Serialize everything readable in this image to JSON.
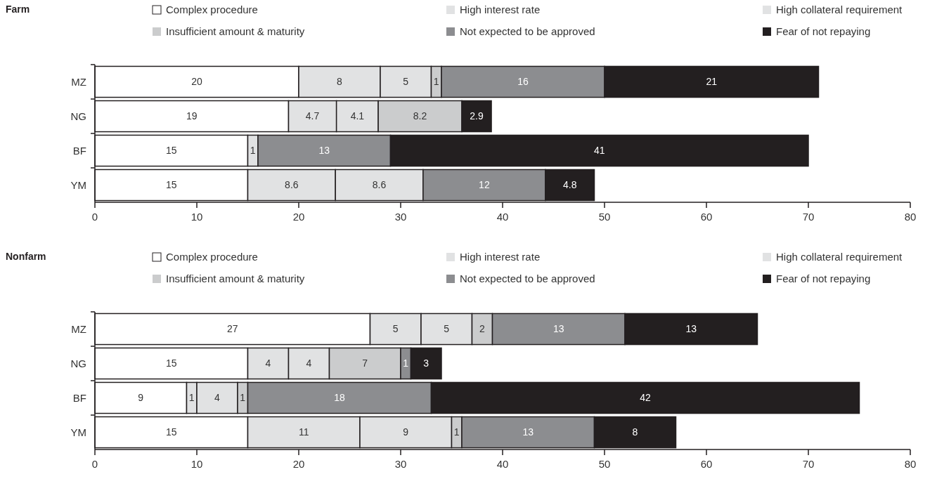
{
  "chart_data": [
    {
      "type": "bar",
      "title": "Farm",
      "orientation": "horizontal",
      "stacked": true,
      "categories": [
        "MZ",
        "NG",
        "BF",
        "YM"
      ],
      "xlim": [
        0,
        80
      ],
      "xticks": [
        0,
        10,
        20,
        30,
        40,
        50,
        60,
        70,
        80
      ],
      "legend": "top",
      "data_labels": true,
      "series": [
        {
          "name": "Complex procedure",
          "color": "#ffffff",
          "values": [
            20,
            19,
            15,
            15
          ]
        },
        {
          "name": "High interest rate",
          "color": "#e1e2e3",
          "values": [
            8,
            4.7,
            1,
            8.6
          ]
        },
        {
          "name": "High collateral requirement",
          "color": "#e1e2e3",
          "values": [
            5,
            4.1,
            null,
            8.6
          ]
        },
        {
          "name": "Insufficient amount & maturity",
          "color": "#cbcccd",
          "values": [
            1,
            8.2,
            null,
            null
          ]
        },
        {
          "name": "Not expected to be approved",
          "color": "#8c8d90",
          "values": [
            16,
            null,
            13,
            12
          ]
        },
        {
          "name": "Fear of not repaying",
          "color": "#231f20",
          "values": [
            21,
            2.9,
            41,
            4.8
          ]
        }
      ]
    },
    {
      "type": "bar",
      "title": "Nonfarm",
      "orientation": "horizontal",
      "stacked": true,
      "categories": [
        "MZ",
        "NG",
        "BF",
        "YM"
      ],
      "xlim": [
        0,
        80
      ],
      "xticks": [
        0,
        10,
        20,
        30,
        40,
        50,
        60,
        70,
        80
      ],
      "legend": "top",
      "data_labels": true,
      "series": [
        {
          "name": "Complex procedure",
          "color": "#ffffff",
          "values": [
            27,
            15,
            9,
            15
          ]
        },
        {
          "name": "High interest rate",
          "color": "#e1e2e3",
          "values": [
            5,
            4,
            1,
            11
          ]
        },
        {
          "name": "High collateral requirement",
          "color": "#e1e2e3",
          "values": [
            5,
            4,
            4,
            9
          ]
        },
        {
          "name": "Insufficient amount & maturity",
          "color": "#cbcccd",
          "values": [
            2,
            7,
            1,
            1
          ]
        },
        {
          "name": "Not expected to be approved",
          "color": "#8c8d90",
          "values": [
            13,
            1,
            18,
            13
          ]
        },
        {
          "name": "Fear of not repaying",
          "color": "#231f20",
          "values": [
            13,
            3,
            42,
            8
          ]
        }
      ]
    }
  ]
}
